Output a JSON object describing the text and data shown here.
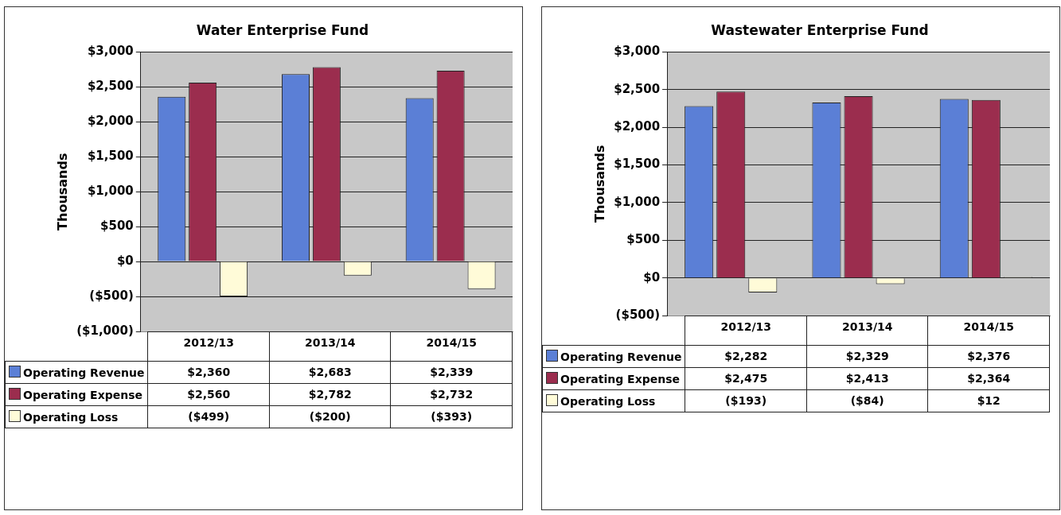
{
  "chart_data": [
    {
      "type": "bar",
      "title": "Water Enterprise Fund",
      "ylabel": "Thousands",
      "categories": [
        "2012/13",
        "2013/14",
        "2014/15"
      ],
      "series": [
        {
          "name": "Operating Revenue",
          "color": "#5b7fd6",
          "values": [
            2360,
            2683,
            2339
          ],
          "value_labels": [
            "$2,360",
            "$2,683",
            "$2,339"
          ]
        },
        {
          "name": "Operating Expense",
          "color": "#9b2d4e",
          "values": [
            2560,
            2782,
            2732
          ],
          "value_labels": [
            "$2,560",
            "$2,782",
            "$2,732"
          ]
        },
        {
          "name": "Operating Loss",
          "color": "#fffbd8",
          "values": [
            -499,
            -200,
            -393
          ],
          "value_labels": [
            "($499)",
            "($200)",
            "($393)"
          ]
        }
      ],
      "ylim": [
        -1000,
        3000
      ],
      "yticks": [
        {
          "value": -1000,
          "label": "($1,000)"
        },
        {
          "value": -500,
          "label": "($500)"
        },
        {
          "value": 0,
          "label": "$0"
        },
        {
          "value": 500,
          "label": "$500"
        },
        {
          "value": 1000,
          "label": "$1,000"
        },
        {
          "value": 1500,
          "label": "$1,500"
        },
        {
          "value": 2000,
          "label": "$2,000"
        },
        {
          "value": 2500,
          "label": "$2,500"
        },
        {
          "value": 3000,
          "label": "$3,000"
        }
      ],
      "grid": "y",
      "legend": "bottom left"
    },
    {
      "type": "bar",
      "title": "Wastewater Enterprise Fund",
      "ylabel": "Thousands",
      "categories": [
        "2012/13",
        "2013/14",
        "2014/15"
      ],
      "series": [
        {
          "name": "Operating Revenue",
          "color": "#5b7fd6",
          "values": [
            2282,
            2329,
            2376
          ],
          "value_labels": [
            "$2,282",
            "$2,329",
            "$2,376"
          ]
        },
        {
          "name": "Operating Expense",
          "color": "#9b2d4e",
          "values": [
            2475,
            2413,
            2364
          ],
          "value_labels": [
            "$2,475",
            "$2,413",
            "$2,364"
          ]
        },
        {
          "name": "Operating Loss",
          "color": "#fffbd8",
          "values": [
            -193,
            -84,
            12
          ],
          "value_labels": [
            "($193)",
            "($84)",
            "$12"
          ]
        }
      ],
      "ylim": [
        -500,
        3000
      ],
      "yticks": [
        {
          "value": -500,
          "label": "($500)"
        },
        {
          "value": 0,
          "label": "$0"
        },
        {
          "value": 500,
          "label": "$500"
        },
        {
          "value": 1000,
          "label": "$1,000"
        },
        {
          "value": 1500,
          "label": "$1,500"
        },
        {
          "value": 2000,
          "label": "$2,000"
        },
        {
          "value": 2500,
          "label": "$2,500"
        },
        {
          "value": 3000,
          "label": "$3,000"
        }
      ],
      "grid": "y",
      "legend": "bottom left"
    }
  ]
}
